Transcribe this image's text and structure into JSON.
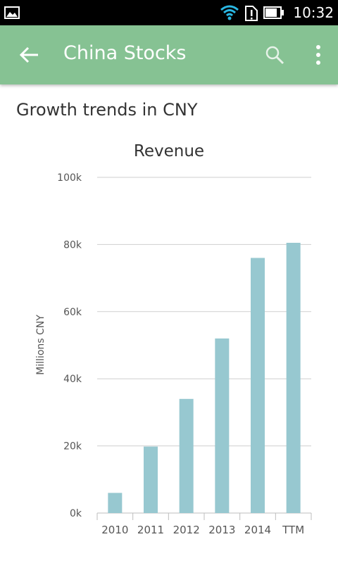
{
  "status_bar": {
    "time": "10:32",
    "icons": [
      "gallery-icon",
      "wifi-icon",
      "sim-alert-icon",
      "battery-icon"
    ]
  },
  "app_bar": {
    "title": "China Stocks",
    "icons": [
      "back-arrow-icon",
      "search-icon",
      "more-vert-icon"
    ],
    "background_color": "#86c293"
  },
  "section_title": "Growth trends in CNY",
  "chart_data": {
    "type": "bar",
    "title": "Revenue",
    "xlabel": "",
    "ylabel": "Millions CNY",
    "categories": [
      "2010",
      "2011",
      "2012",
      "2013",
      "2014",
      "TTM"
    ],
    "values": [
      6000,
      19800,
      34000,
      52000,
      76000,
      80500
    ],
    "ylim": [
      0,
      100000
    ],
    "y_ticks": [
      0,
      20000,
      40000,
      60000,
      80000,
      100000
    ],
    "y_tick_labels": [
      "0k",
      "20k",
      "40k",
      "60k",
      "80k",
      "100k"
    ],
    "bar_color": "#97c8d0",
    "grid": true,
    "legend": "none"
  }
}
